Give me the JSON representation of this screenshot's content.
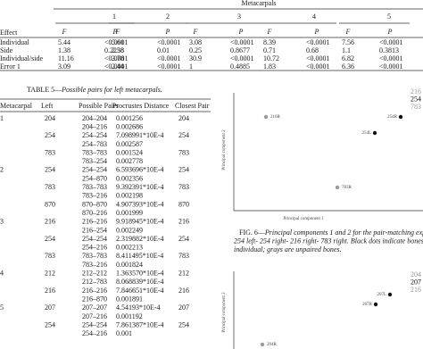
{
  "table4": {
    "group_header": "Metacarpals",
    "row_header": "Effect",
    "columns": [
      "1",
      "2",
      "3",
      "4",
      "5"
    ],
    "sub_headers": [
      "F",
      "P"
    ],
    "rows": [
      {
        "label": "Individual",
        "cells": [
          "5.44",
          "<0.0001",
          "5.61",
          "<0.0001",
          "3.08",
          "<0.0001",
          "8.39",
          "<0.0001",
          "7.56",
          "<0.0001"
        ]
      },
      {
        "label": "Side",
        "cells": [
          "1.38",
          "0.2238",
          "2.58",
          "0.01",
          "0.25",
          "0.8677",
          "0.71",
          "0.68",
          "1.1",
          "0.3813"
        ]
      },
      {
        "label": "Individual/side",
        "cells": [
          "11.16",
          "<0.0001",
          "3.78",
          "<0.0001",
          "30.9",
          "<0.0001",
          "10.72",
          "<0.0001",
          "6.82",
          "<0.0001"
        ]
      },
      {
        "label": "Error 1",
        "cells": [
          "3.09",
          "<0.0001",
          "2.44",
          "<0.0001",
          "1",
          "0.4885",
          "1.83",
          "<0.0001",
          "6.36",
          "<0.0001"
        ]
      }
    ]
  },
  "table5": {
    "caption_label": "TABLE 5—",
    "caption_text": "Possible pairs for left metacarpals.",
    "headers": [
      "Metacarpal",
      "Left",
      "Possible Pairs",
      "Procrustes Distance",
      "Closest Pair"
    ],
    "rows": [
      {
        "metacarpal": "1",
        "left": "204",
        "pair": "204–204",
        "distance": "0.001256",
        "closest": "204"
      },
      {
        "pair": "204–216",
        "distance": "0.002686"
      },
      {
        "left": "254",
        "pair": "254–254",
        "distance": "7.098991*10E-4",
        "closest": "254"
      },
      {
        "pair": "254–783",
        "distance": "0.002587"
      },
      {
        "left": "783",
        "pair": "783–783",
        "distance": "0.001524",
        "closest": "783"
      },
      {
        "pair": "783–254",
        "distance": "0.002778"
      },
      {
        "metacarpal": "2",
        "left": "254",
        "pair": "254–254",
        "distance": "6.593696*10E-4",
        "closest": "254"
      },
      {
        "pair": "254–870",
        "distance": "0.002356"
      },
      {
        "left": "783",
        "pair": "783–783",
        "distance": "9.392391*10E-4",
        "closest": "783"
      },
      {
        "pair": "783–216",
        "distance": "0.002198"
      },
      {
        "left": "870",
        "pair": "870–870",
        "distance": "4.907393*10E-4",
        "closest": "870"
      },
      {
        "pair": "870–216",
        "distance": "0.001999"
      },
      {
        "metacarpal": "3",
        "left": "216",
        "pair": "216–216",
        "distance": "9.918945*10E-4",
        "closest": "216"
      },
      {
        "pair": "216–254",
        "distance": "0.002249"
      },
      {
        "left": "254",
        "pair": "254–254",
        "distance": "2.319882*10E-4",
        "closest": "254"
      },
      {
        "pair": "254–216",
        "distance": "0.002213"
      },
      {
        "left": "783",
        "pair": "783–783",
        "distance": "8.411495*10E-4",
        "closest": "783"
      },
      {
        "pair": "783–216",
        "distance": "0.001824"
      },
      {
        "metacarpal": "4",
        "left": "212",
        "pair": "212–212",
        "distance": "1.363570*10E-4",
        "closest": "212"
      },
      {
        "pair": "212–783",
        "distance": "8.068839*10E-4"
      },
      {
        "left": "216",
        "pair": "216–216",
        "distance": "7.846651*10E-4",
        "closest": "216"
      },
      {
        "pair": "216–870",
        "distance": "0.001891"
      },
      {
        "metacarpal": "5",
        "left": "207",
        "pair": "207–207",
        "distance": "4.54193*10E-4",
        "closest": "207"
      },
      {
        "pair": "207–216",
        "distance": "0.001192"
      },
      {
        "left": "254",
        "pair": "254–254",
        "distance": "7.861387*10E-4",
        "closest": "254"
      },
      {
        "pair": "254–216",
        "distance": "0.001"
      }
    ]
  },
  "figure6": {
    "legend": [
      {
        "label": "216",
        "paired": false
      },
      {
        "label": "254",
        "paired": true
      },
      {
        "label": "783",
        "paired": false
      }
    ],
    "points": [
      {
        "label": "216R",
        "paired": false
      },
      {
        "label": "254R",
        "paired": true
      },
      {
        "label": "254L",
        "paired": true
      },
      {
        "label": "783R",
        "paired": false
      }
    ],
    "x_label": "Principal component 1",
    "y_label": "Principal component 2",
    "caption_label": "FIG. 6—",
    "caption_lines": [
      "Principal components 1 and 2 for the pair-matching experiment",
      "254 left- 254 right- 216 right- 783 right. Black dots indicate bones of a same",
      "individual; grays are unpaired bones."
    ]
  },
  "figure7": {
    "legend": [
      {
        "label": "204",
        "paired": false
      },
      {
        "label": "207",
        "paired": true
      },
      {
        "label": "216",
        "paired": false
      }
    ],
    "points": [
      {
        "label": "207L",
        "paired": true
      },
      {
        "label": "207R",
        "paired": true
      },
      {
        "label": "204R",
        "paired": false
      }
    ],
    "y_label": "Principal component 2"
  }
}
